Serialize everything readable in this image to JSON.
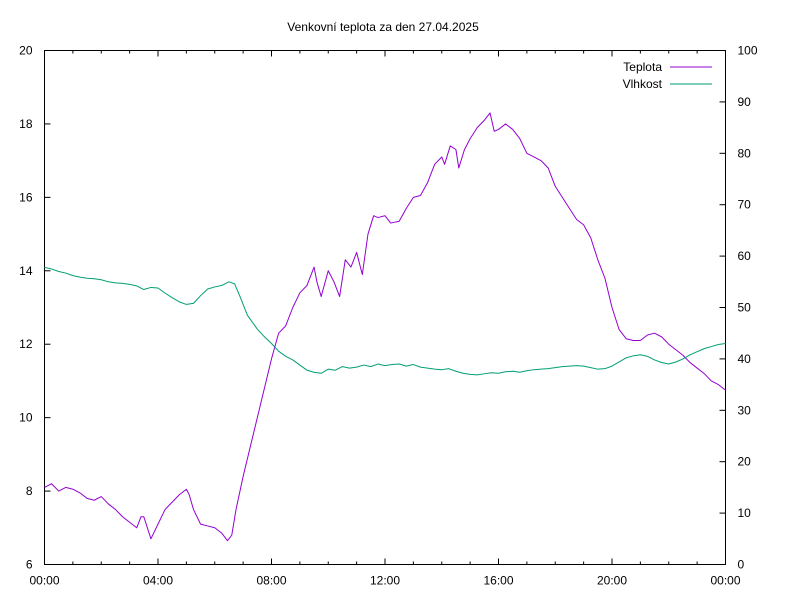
{
  "chart_data": {
    "type": "line",
    "title": "Venkovní teplota za den 27.04.2025",
    "legend_position": "top-right",
    "grid": false,
    "x_range_hours": [
      0,
      24
    ],
    "x_tick_labels": [
      "00:00",
      "04:00",
      "08:00",
      "12:00",
      "16:00",
      "20:00",
      "00:00"
    ],
    "y_left": {
      "range": [
        6,
        20
      ],
      "ticks": [
        "6",
        "8",
        "10",
        "12",
        "14",
        "16",
        "18",
        "20"
      ]
    },
    "y_right": {
      "range": [
        0,
        100
      ],
      "ticks": [
        "0",
        "10",
        "20",
        "30",
        "40",
        "50",
        "60",
        "70",
        "80",
        "90",
        "100"
      ]
    },
    "series": [
      {
        "name": "Teplota",
        "axis": "left",
        "color": "#9400d3",
        "points": [
          [
            0.0,
            8.1
          ],
          [
            0.25,
            8.2
          ],
          [
            0.5,
            8.0
          ],
          [
            0.75,
            8.1
          ],
          [
            1.0,
            8.05
          ],
          [
            1.25,
            7.95
          ],
          [
            1.5,
            7.8
          ],
          [
            1.75,
            7.75
          ],
          [
            2.0,
            7.85
          ],
          [
            2.25,
            7.65
          ],
          [
            2.5,
            7.5
          ],
          [
            2.75,
            7.3
          ],
          [
            3.0,
            7.15
          ],
          [
            3.25,
            7.0
          ],
          [
            3.4,
            7.3
          ],
          [
            3.5,
            7.3
          ],
          [
            3.75,
            6.7
          ],
          [
            4.0,
            7.1
          ],
          [
            4.25,
            7.5
          ],
          [
            4.5,
            7.7
          ],
          [
            4.75,
            7.9
          ],
          [
            5.0,
            8.05
          ],
          [
            5.1,
            7.9
          ],
          [
            5.25,
            7.5
          ],
          [
            5.5,
            7.1
          ],
          [
            5.75,
            7.05
          ],
          [
            6.0,
            7.0
          ],
          [
            6.25,
            6.85
          ],
          [
            6.45,
            6.65
          ],
          [
            6.6,
            6.8
          ],
          [
            6.75,
            7.5
          ],
          [
            7.0,
            8.4
          ],
          [
            7.25,
            9.2
          ],
          [
            7.5,
            10.0
          ],
          [
            7.75,
            10.8
          ],
          [
            8.0,
            11.6
          ],
          [
            8.25,
            12.3
          ],
          [
            8.5,
            12.5
          ],
          [
            8.75,
            13.0
          ],
          [
            9.0,
            13.4
          ],
          [
            9.25,
            13.6
          ],
          [
            9.5,
            14.1
          ],
          [
            9.6,
            13.7
          ],
          [
            9.75,
            13.3
          ],
          [
            10.0,
            14.0
          ],
          [
            10.2,
            13.7
          ],
          [
            10.4,
            13.3
          ],
          [
            10.6,
            14.3
          ],
          [
            10.8,
            14.1
          ],
          [
            11.0,
            14.5
          ],
          [
            11.2,
            13.9
          ],
          [
            11.4,
            15.0
          ],
          [
            11.6,
            15.5
          ],
          [
            11.75,
            15.45
          ],
          [
            12.0,
            15.5
          ],
          [
            12.2,
            15.3
          ],
          [
            12.5,
            15.35
          ],
          [
            12.75,
            15.7
          ],
          [
            13.0,
            16.0
          ],
          [
            13.25,
            16.05
          ],
          [
            13.5,
            16.4
          ],
          [
            13.75,
            16.9
          ],
          [
            14.0,
            17.1
          ],
          [
            14.1,
            16.9
          ],
          [
            14.3,
            17.4
          ],
          [
            14.5,
            17.3
          ],
          [
            14.6,
            16.8
          ],
          [
            14.8,
            17.3
          ],
          [
            15.0,
            17.6
          ],
          [
            15.25,
            17.9
          ],
          [
            15.5,
            18.1
          ],
          [
            15.7,
            18.3
          ],
          [
            15.85,
            17.8
          ],
          [
            16.0,
            17.85
          ],
          [
            16.25,
            18.0
          ],
          [
            16.5,
            17.85
          ],
          [
            16.75,
            17.6
          ],
          [
            17.0,
            17.2
          ],
          [
            17.25,
            17.1
          ],
          [
            17.5,
            17.0
          ],
          [
            17.75,
            16.8
          ],
          [
            18.0,
            16.3
          ],
          [
            18.25,
            16.0
          ],
          [
            18.5,
            15.7
          ],
          [
            18.75,
            15.4
          ],
          [
            19.0,
            15.25
          ],
          [
            19.25,
            14.9
          ],
          [
            19.5,
            14.3
          ],
          [
            19.75,
            13.8
          ],
          [
            20.0,
            13.0
          ],
          [
            20.25,
            12.4
          ],
          [
            20.5,
            12.15
          ],
          [
            20.75,
            12.1
          ],
          [
            21.0,
            12.1
          ],
          [
            21.25,
            12.25
          ],
          [
            21.5,
            12.3
          ],
          [
            21.75,
            12.2
          ],
          [
            22.0,
            12.0
          ],
          [
            22.25,
            11.85
          ],
          [
            22.5,
            11.7
          ],
          [
            22.75,
            11.5
          ],
          [
            23.0,
            11.35
          ],
          [
            23.25,
            11.2
          ],
          [
            23.5,
            11.0
          ],
          [
            23.75,
            10.9
          ],
          [
            24.0,
            10.75
          ]
        ]
      },
      {
        "name": "Vlhkost",
        "axis": "right",
        "color": "#009e73",
        "points": [
          [
            0.0,
            57.8
          ],
          [
            0.25,
            57.5
          ],
          [
            0.5,
            57.0
          ],
          [
            0.75,
            56.7
          ],
          [
            1.0,
            56.2
          ],
          [
            1.25,
            55.9
          ],
          [
            1.5,
            55.7
          ],
          [
            1.75,
            55.6
          ],
          [
            2.0,
            55.4
          ],
          [
            2.25,
            55.0
          ],
          [
            2.5,
            54.8
          ],
          [
            2.75,
            54.7
          ],
          [
            3.0,
            54.5
          ],
          [
            3.25,
            54.2
          ],
          [
            3.5,
            53.5
          ],
          [
            3.75,
            53.9
          ],
          [
            4.0,
            53.8
          ],
          [
            4.25,
            52.8
          ],
          [
            4.5,
            51.9
          ],
          [
            4.75,
            51.1
          ],
          [
            5.0,
            50.6
          ],
          [
            5.25,
            50.8
          ],
          [
            5.5,
            52.3
          ],
          [
            5.75,
            53.6
          ],
          [
            6.0,
            54.0
          ],
          [
            6.25,
            54.3
          ],
          [
            6.5,
            55.0
          ],
          [
            6.7,
            54.6
          ],
          [
            6.9,
            52.0
          ],
          [
            7.15,
            48.5
          ],
          [
            7.5,
            45.8
          ],
          [
            7.75,
            44.3
          ],
          [
            8.0,
            43.0
          ],
          [
            8.25,
            41.5
          ],
          [
            8.5,
            40.5
          ],
          [
            8.75,
            39.8
          ],
          [
            9.0,
            38.8
          ],
          [
            9.25,
            37.8
          ],
          [
            9.5,
            37.4
          ],
          [
            9.75,
            37.2
          ],
          [
            10.0,
            38.0
          ],
          [
            10.25,
            37.8
          ],
          [
            10.5,
            38.5
          ],
          [
            10.75,
            38.2
          ],
          [
            11.0,
            38.4
          ],
          [
            11.25,
            38.8
          ],
          [
            11.5,
            38.5
          ],
          [
            11.75,
            39.0
          ],
          [
            12.0,
            38.7
          ],
          [
            12.25,
            38.9
          ],
          [
            12.5,
            39.0
          ],
          [
            12.75,
            38.6
          ],
          [
            13.0,
            38.9
          ],
          [
            13.25,
            38.4
          ],
          [
            13.5,
            38.2
          ],
          [
            13.75,
            38.0
          ],
          [
            14.0,
            37.9
          ],
          [
            14.25,
            38.1
          ],
          [
            14.5,
            37.6
          ],
          [
            14.75,
            37.2
          ],
          [
            15.0,
            37.0
          ],
          [
            15.25,
            36.9
          ],
          [
            15.5,
            37.1
          ],
          [
            15.75,
            37.3
          ],
          [
            16.0,
            37.2
          ],
          [
            16.25,
            37.5
          ],
          [
            16.5,
            37.6
          ],
          [
            16.75,
            37.4
          ],
          [
            17.0,
            37.7
          ],
          [
            17.25,
            37.9
          ],
          [
            17.5,
            38.0
          ],
          [
            17.75,
            38.1
          ],
          [
            18.0,
            38.3
          ],
          [
            18.25,
            38.5
          ],
          [
            18.5,
            38.6
          ],
          [
            18.75,
            38.7
          ],
          [
            19.0,
            38.6
          ],
          [
            19.25,
            38.3
          ],
          [
            19.5,
            38.0
          ],
          [
            19.75,
            38.1
          ],
          [
            20.0,
            38.6
          ],
          [
            20.25,
            39.4
          ],
          [
            20.5,
            40.2
          ],
          [
            20.75,
            40.6
          ],
          [
            21.0,
            40.8
          ],
          [
            21.25,
            40.5
          ],
          [
            21.5,
            39.8
          ],
          [
            21.75,
            39.3
          ],
          [
            22.0,
            39.0
          ],
          [
            22.25,
            39.4
          ],
          [
            22.5,
            40.0
          ],
          [
            22.75,
            40.8
          ],
          [
            23.0,
            41.4
          ],
          [
            23.25,
            42.0
          ],
          [
            23.5,
            42.4
          ],
          [
            23.75,
            42.8
          ],
          [
            24.0,
            43.0
          ]
        ]
      }
    ]
  }
}
